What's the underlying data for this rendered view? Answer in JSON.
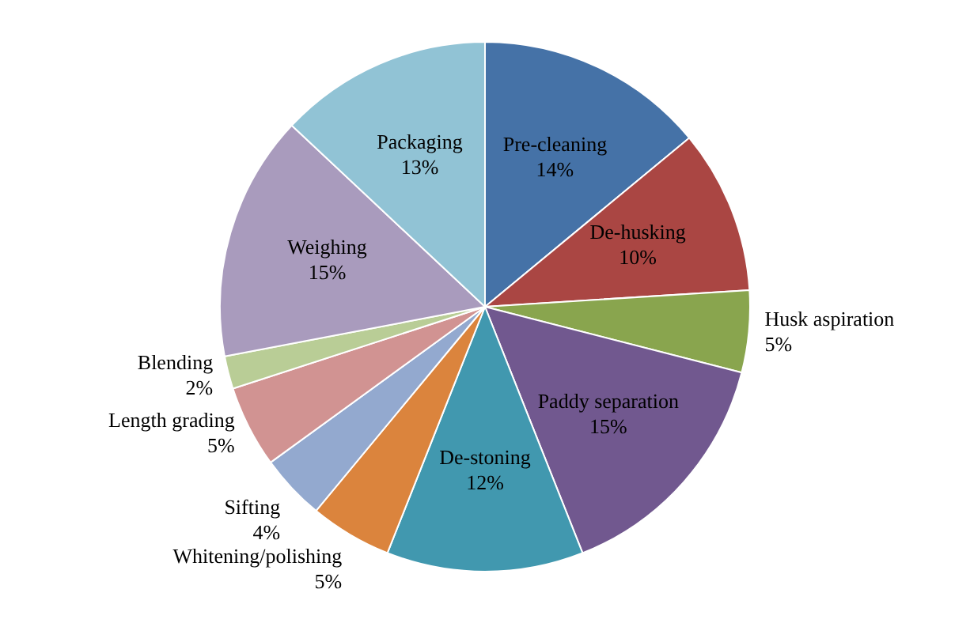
{
  "chart_data": {
    "type": "pie",
    "categories": [
      "Pre-cleaning",
      "De-husking",
      "Husk aspiration",
      "Paddy separation",
      "De-stoning",
      "Whitening/polishing",
      "Sifting",
      "Length grading",
      "Blending",
      "Weighing",
      "Packaging"
    ],
    "values": [
      14,
      10,
      5,
      15,
      12,
      5,
      4,
      5,
      2,
      15,
      13
    ],
    "value_labels": [
      "14%",
      "10%",
      "5%",
      "15%",
      "12%",
      "5%",
      "4%",
      "5%",
      "2%",
      "15%",
      "13%"
    ],
    "colors": [
      "#4572a7",
      "#aa4643",
      "#89a54e",
      "#71588f",
      "#4198af",
      "#db843d",
      "#93a9cf",
      "#d19392",
      "#b9cd96",
      "#a99bbd",
      "#91c3d5"
    ],
    "legend": false
  }
}
